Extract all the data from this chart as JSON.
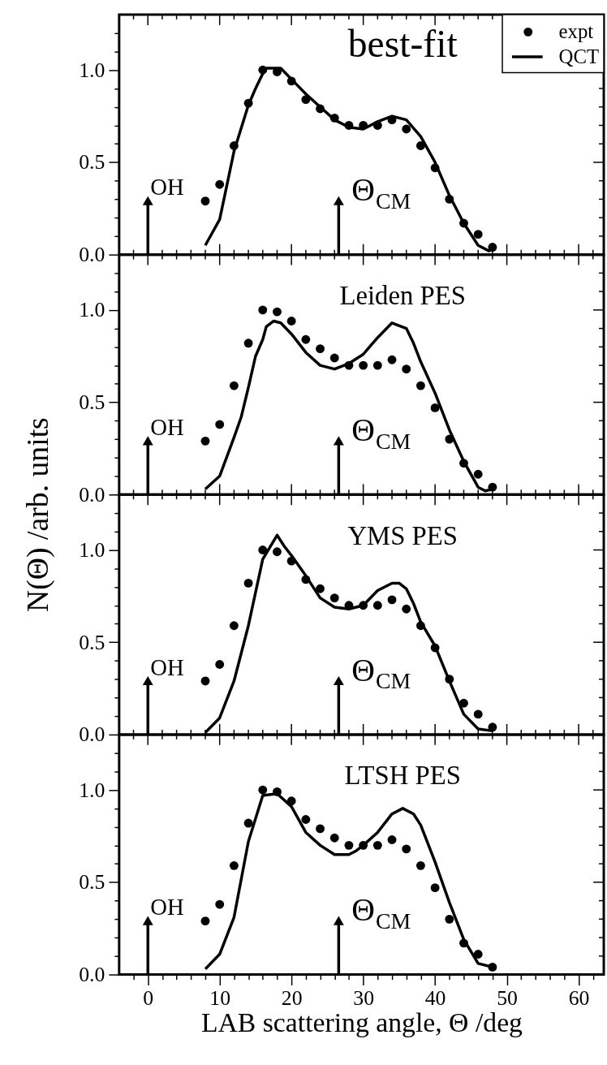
{
  "chart_data": [
    {
      "type": "line",
      "title": "best-fit",
      "ylabel": "N(Θ) /arb. units",
      "tick_labels": "y",
      "legend": "top right",
      "x": [
        8,
        10,
        12,
        14,
        16,
        18,
        20,
        22,
        24,
        26,
        28,
        30,
        32,
        34,
        36,
        38,
        40,
        42,
        44,
        46,
        48
      ],
      "xlim": [
        -4,
        63.5
      ],
      "xticks": [
        {
          "value": -2,
          "label": null
        },
        0,
        {
          "value": 2,
          "label": null
        },
        {
          "value": 4,
          "label": null
        },
        {
          "value": 6,
          "label": null
        },
        {
          "value": 8,
          "label": null
        },
        10,
        {
          "value": 12,
          "label": null
        },
        {
          "value": 14,
          "label": null
        },
        {
          "value": 16,
          "label": null
        },
        {
          "value": 18,
          "label": null
        },
        20,
        {
          "value": 22,
          "label": null
        },
        {
          "value": 24,
          "label": null
        },
        {
          "value": 26,
          "label": null
        },
        {
          "value": 28,
          "label": null
        },
        30,
        {
          "value": 32,
          "label": null
        },
        {
          "value": 34,
          "label": null
        },
        {
          "value": 36,
          "label": null
        },
        {
          "value": 38,
          "label": null
        },
        40,
        {
          "value": 42,
          "label": null
        },
        {
          "value": 44,
          "label": null
        },
        {
          "value": 46,
          "label": null
        },
        {
          "value": 48,
          "label": null
        },
        50,
        {
          "value": 52,
          "label": null
        },
        {
          "value": 54,
          "label": null
        },
        {
          "value": 56,
          "label": null
        },
        {
          "value": 58,
          "label": null
        },
        60,
        {
          "value": 62,
          "label": null
        }
      ],
      "ylim": [
        0,
        1.3
      ],
      "yticks": [
        {
          "value": 0,
          "label": "0.0"
        },
        {
          "value": 0.1,
          "label": null
        },
        {
          "value": 0.2,
          "label": null
        },
        {
          "value": 0.3,
          "label": null
        },
        {
          "value": 0.4,
          "label": null
        },
        {
          "value": 0.5,
          "label": "0.5"
        },
        {
          "value": 0.6,
          "label": null
        },
        {
          "value": 0.7,
          "label": null
        },
        {
          "value": 0.8,
          "label": null
        },
        {
          "value": 0.9,
          "label": null
        },
        {
          "value": 1.0,
          "label": "1.0"
        },
        {
          "value": 1.1,
          "label": null
        },
        {
          "value": 1.2,
          "label": null
        }
      ],
      "annotations": [
        "OH",
        "Θ$_{CM}$"
      ],
      "series": [
        {
          "name": "expt",
          "type": "scatter",
          "marker": "circle",
          "color": "#000000",
          "values": [
            0.29,
            0.38,
            0.59,
            0.82,
            1.0,
            0.99,
            0.94,
            0.84,
            0.79,
            0.74,
            0.7,
            0.7,
            0.7,
            0.73,
            0.68,
            0.59,
            0.47,
            0.3,
            0.17,
            0.11,
            0.04
          ]
        },
        {
          "name": "QCT",
          "color": "#000000",
          "x": [
            8,
            10,
            12,
            14,
            15,
            16,
            16.5,
            18.5,
            20,
            22,
            24,
            26,
            28,
            30,
            32,
            34,
            36,
            38,
            40,
            42,
            44,
            46,
            47.5,
            48
          ],
          "values": [
            0.05,
            0.19,
            0.56,
            0.81,
            0.9,
            0.98,
            1.01,
            1.01,
            0.95,
            0.87,
            0.8,
            0.73,
            0.69,
            0.68,
            0.72,
            0.75,
            0.73,
            0.64,
            0.5,
            0.32,
            0.17,
            0.05,
            0.02,
            0.03
          ]
        }
      ]
    },
    {
      "type": "line",
      "title": "Leiden PES",
      "tick_labels": "y",
      "x": [
        8,
        10,
        12,
        14,
        16,
        18,
        20,
        22,
        24,
        26,
        28,
        30,
        32,
        34,
        36,
        38,
        40,
        42,
        44,
        46,
        48
      ],
      "xlim": [
        -4,
        63.5
      ],
      "xticks": [
        {
          "value": -2,
          "label": null
        },
        0,
        {
          "value": 2,
          "label": null
        },
        {
          "value": 4,
          "label": null
        },
        {
          "value": 6,
          "label": null
        },
        {
          "value": 8,
          "label": null
        },
        10,
        {
          "value": 12,
          "label": null
        },
        {
          "value": 14,
          "label": null
        },
        {
          "value": 16,
          "label": null
        },
        {
          "value": 18,
          "label": null
        },
        20,
        {
          "value": 22,
          "label": null
        },
        {
          "value": 24,
          "label": null
        },
        {
          "value": 26,
          "label": null
        },
        {
          "value": 28,
          "label": null
        },
        30,
        {
          "value": 32,
          "label": null
        },
        {
          "value": 34,
          "label": null
        },
        {
          "value": 36,
          "label": null
        },
        {
          "value": 38,
          "label": null
        },
        40,
        {
          "value": 42,
          "label": null
        },
        {
          "value": 44,
          "label": null
        },
        {
          "value": 46,
          "label": null
        },
        {
          "value": 48,
          "label": null
        },
        50,
        {
          "value": 52,
          "label": null
        },
        {
          "value": 54,
          "label": null
        },
        {
          "value": 56,
          "label": null
        },
        {
          "value": 58,
          "label": null
        },
        60,
        {
          "value": 62,
          "label": null
        }
      ],
      "ylim": [
        0,
        1.3
      ],
      "yticks": [
        {
          "value": 0,
          "label": "0.0"
        },
        {
          "value": 0.1,
          "label": null
        },
        {
          "value": 0.2,
          "label": null
        },
        {
          "value": 0.3,
          "label": null
        },
        {
          "value": 0.4,
          "label": null
        },
        {
          "value": 0.5,
          "label": "0.5"
        },
        {
          "value": 0.6,
          "label": null
        },
        {
          "value": 0.7,
          "label": null
        },
        {
          "value": 0.8,
          "label": null
        },
        {
          "value": 0.9,
          "label": null
        },
        {
          "value": 1.0,
          "label": "1.0"
        },
        {
          "value": 1.1,
          "label": null
        },
        {
          "value": 1.2,
          "label": null
        }
      ],
      "annotations": [
        "OH",
        "Θ$_{CM}$"
      ],
      "series": [
        {
          "type": "scatter",
          "marker": "circle",
          "color": "#000000",
          "values": [
            0.29,
            0.38,
            0.59,
            0.82,
            1.0,
            0.99,
            0.94,
            0.84,
            0.79,
            0.74,
            0.7,
            0.7,
            0.7,
            0.73,
            0.68,
            0.59,
            0.47,
            0.3,
            0.17,
            0.11,
            0.04
          ]
        },
        {
          "color": "#000000",
          "x": [
            8,
            10,
            12,
            13,
            14,
            15,
            16,
            16.5,
            17.5,
            18.5,
            20,
            22,
            24,
            26,
            28,
            30,
            32,
            34,
            36,
            37,
            38,
            40,
            42,
            44,
            46,
            47,
            48
          ],
          "values": [
            0.03,
            0.1,
            0.31,
            0.42,
            0.58,
            0.75,
            0.84,
            0.91,
            0.94,
            0.93,
            0.87,
            0.77,
            0.7,
            0.68,
            0.71,
            0.76,
            0.85,
            0.93,
            0.9,
            0.82,
            0.72,
            0.55,
            0.35,
            0.18,
            0.04,
            0.02,
            0.03
          ]
        }
      ]
    },
    {
      "type": "line",
      "title": "YMS PES",
      "tick_labels": "y",
      "x": [
        8,
        10,
        12,
        14,
        16,
        18,
        20,
        22,
        24,
        26,
        28,
        30,
        32,
        34,
        36,
        38,
        40,
        42,
        44,
        46,
        48
      ],
      "xlim": [
        -4,
        63.5
      ],
      "xticks": [
        {
          "value": -2,
          "label": null
        },
        0,
        {
          "value": 2,
          "label": null
        },
        {
          "value": 4,
          "label": null
        },
        {
          "value": 6,
          "label": null
        },
        {
          "value": 8,
          "label": null
        },
        10,
        {
          "value": 12,
          "label": null
        },
        {
          "value": 14,
          "label": null
        },
        {
          "value": 16,
          "label": null
        },
        {
          "value": 18,
          "label": null
        },
        20,
        {
          "value": 22,
          "label": null
        },
        {
          "value": 24,
          "label": null
        },
        {
          "value": 26,
          "label": null
        },
        {
          "value": 28,
          "label": null
        },
        30,
        {
          "value": 32,
          "label": null
        },
        {
          "value": 34,
          "label": null
        },
        {
          "value": 36,
          "label": null
        },
        {
          "value": 38,
          "label": null
        },
        40,
        {
          "value": 42,
          "label": null
        },
        {
          "value": 44,
          "label": null
        },
        {
          "value": 46,
          "label": null
        },
        {
          "value": 48,
          "label": null
        },
        50,
        {
          "value": 52,
          "label": null
        },
        {
          "value": 54,
          "label": null
        },
        {
          "value": 56,
          "label": null
        },
        {
          "value": 58,
          "label": null
        },
        60,
        {
          "value": 62,
          "label": null
        }
      ],
      "ylim": [
        0,
        1.3
      ],
      "yticks": [
        {
          "value": 0,
          "label": "0.0"
        },
        {
          "value": 0.1,
          "label": null
        },
        {
          "value": 0.2,
          "label": null
        },
        {
          "value": 0.3,
          "label": null
        },
        {
          "value": 0.4,
          "label": null
        },
        {
          "value": 0.5,
          "label": "0.5"
        },
        {
          "value": 0.6,
          "label": null
        },
        {
          "value": 0.7,
          "label": null
        },
        {
          "value": 0.8,
          "label": null
        },
        {
          "value": 0.9,
          "label": null
        },
        {
          "value": 1.0,
          "label": "1.0"
        },
        {
          "value": 1.1,
          "label": null
        },
        {
          "value": 1.2,
          "label": null
        }
      ],
      "annotations": [
        "OH",
        "Θ$_{CM}$"
      ],
      "series": [
        {
          "type": "scatter",
          "marker": "circle",
          "color": "#000000",
          "values": [
            0.29,
            0.38,
            0.59,
            0.82,
            1.0,
            0.99,
            0.94,
            0.84,
            0.79,
            0.74,
            0.7,
            0.7,
            0.7,
            0.73,
            0.68,
            0.59,
            0.47,
            0.3,
            0.17,
            0.11,
            0.04
          ]
        },
        {
          "color": "#000000",
          "x": [
            8,
            10,
            12,
            14,
            16,
            18,
            19,
            20,
            22,
            24,
            26,
            28,
            30,
            32,
            34,
            35,
            36,
            37,
            38,
            40,
            42,
            44,
            46,
            48
          ],
          "values": [
            0.01,
            0.09,
            0.29,
            0.59,
            0.95,
            1.08,
            1.02,
            0.97,
            0.86,
            0.74,
            0.69,
            0.68,
            0.7,
            0.78,
            0.82,
            0.82,
            0.79,
            0.71,
            0.61,
            0.48,
            0.29,
            0.11,
            0.03,
            0.02
          ]
        }
      ]
    },
    {
      "type": "line",
      "title": "LTSH PES",
      "xlabel": "LAB scattering angle, Θ /deg",
      "x": [
        8,
        10,
        12,
        14,
        16,
        18,
        20,
        22,
        24,
        26,
        28,
        30,
        32,
        34,
        36,
        38,
        40,
        42,
        44,
        46,
        48
      ],
      "xlim": [
        -4,
        63.5
      ],
      "xticks": [
        {
          "value": -2,
          "label": null
        },
        0,
        {
          "value": 2,
          "label": null
        },
        {
          "value": 4,
          "label": null
        },
        {
          "value": 6,
          "label": null
        },
        {
          "value": 8,
          "label": null
        },
        10,
        {
          "value": 12,
          "label": null
        },
        {
          "value": 14,
          "label": null
        },
        {
          "value": 16,
          "label": null
        },
        {
          "value": 18,
          "label": null
        },
        20,
        {
          "value": 22,
          "label": null
        },
        {
          "value": 24,
          "label": null
        },
        {
          "value": 26,
          "label": null
        },
        {
          "value": 28,
          "label": null
        },
        30,
        {
          "value": 32,
          "label": null
        },
        {
          "value": 34,
          "label": null
        },
        {
          "value": 36,
          "label": null
        },
        {
          "value": 38,
          "label": null
        },
        40,
        {
          "value": 42,
          "label": null
        },
        {
          "value": 44,
          "label": null
        },
        {
          "value": 46,
          "label": null
        },
        {
          "value": 48,
          "label": null
        },
        50,
        {
          "value": 52,
          "label": null
        },
        {
          "value": 54,
          "label": null
        },
        {
          "value": 56,
          "label": null
        },
        {
          "value": 58,
          "label": null
        },
        60,
        {
          "value": 62,
          "label": null
        }
      ],
      "ylim": [
        0,
        1.3
      ],
      "yticks": [
        {
          "value": 0,
          "label": "0.0"
        },
        {
          "value": 0.1,
          "label": null
        },
        {
          "value": 0.2,
          "label": null
        },
        {
          "value": 0.3,
          "label": null
        },
        {
          "value": 0.4,
          "label": null
        },
        {
          "value": 0.5,
          "label": "0.5"
        },
        {
          "value": 0.6,
          "label": null
        },
        {
          "value": 0.7,
          "label": null
        },
        {
          "value": 0.8,
          "label": null
        },
        {
          "value": 0.9,
          "label": null
        },
        {
          "value": 1.0,
          "label": "1.0"
        },
        {
          "value": 1.1,
          "label": null
        },
        {
          "value": 1.2,
          "label": null
        }
      ],
      "annotations": [
        "OH",
        "Θ$_{CM}$"
      ],
      "series": [
        {
          "type": "scatter",
          "marker": "circle",
          "color": "#000000",
          "values": [
            0.29,
            0.38,
            0.59,
            0.82,
            1.0,
            0.99,
            0.94,
            0.84,
            0.79,
            0.74,
            0.7,
            0.7,
            0.7,
            0.73,
            0.68,
            0.59,
            0.47,
            0.3,
            0.17,
            0.11,
            0.04
          ]
        },
        {
          "color": "#000000",
          "x": [
            8,
            10,
            12,
            14,
            16,
            18,
            20,
            22,
            24,
            26,
            28,
            29,
            30,
            32,
            34,
            35.5,
            37,
            38,
            40,
            42,
            44,
            46,
            48
          ],
          "values": [
            0.03,
            0.11,
            0.31,
            0.72,
            0.97,
            0.98,
            0.91,
            0.77,
            0.7,
            0.65,
            0.65,
            0.67,
            0.7,
            0.77,
            0.87,
            0.9,
            0.87,
            0.81,
            0.61,
            0.39,
            0.19,
            0.06,
            0.04
          ]
        }
      ]
    }
  ]
}
